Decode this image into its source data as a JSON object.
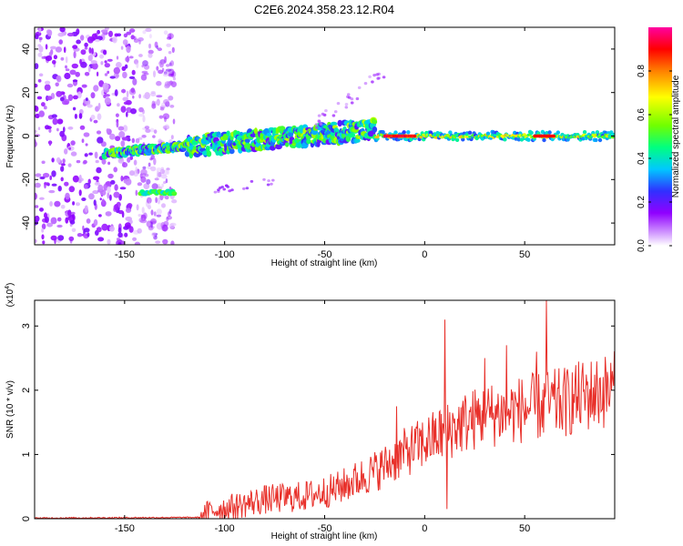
{
  "title": "C2E6.2024.358.23.12.R04",
  "chart_data": [
    {
      "type": "heatmap",
      "xlabel": "Height of straight line (km)",
      "ylabel": "Frequency (Hz)",
      "xlim": [
        -195,
        95
      ],
      "ylim": [
        -50,
        50
      ],
      "xticks": [
        -150,
        -100,
        -50,
        0,
        50
      ],
      "yticks": [
        -40,
        -20,
        0,
        20,
        40
      ],
      "colorbar": {
        "label": "Normalized spectral amplitude",
        "range": [
          0,
          1
        ],
        "ticks": [
          "0.0",
          "0.2",
          "0.4",
          "0.6",
          "0.8"
        ],
        "colors": [
          "#ffffff",
          "#d8a8ff",
          "#9000ff",
          "#3030ff",
          "#00c8ff",
          "#00ff80",
          "#70ff00",
          "#ffff00",
          "#ff8000",
          "#ff0000",
          "#ff00a0"
        ]
      },
      "features": [
        {
          "name": "noise cloud",
          "x": [
            -195,
            -125
          ],
          "y": [
            -50,
            50
          ],
          "amplitude": 0.15
        },
        {
          "name": "lower trace",
          "x": [
            -142,
            -125
          ],
          "y": -26,
          "amplitude": 0.35
        },
        {
          "name": "main trace",
          "x": [
            -160,
            -25
          ],
          "y_start": -8,
          "y_end": 3,
          "amplitude": 0.45
        },
        {
          "name": "zero line",
          "x": [
            -25,
            95
          ],
          "y": 0,
          "amplitude": 0.85
        }
      ]
    },
    {
      "type": "line",
      "xlabel": "Height of straight line (km)",
      "ylabel": "SNR (10 * v/v)",
      "scale_label": "(x10",
      "scale_exponent": "4",
      "scale_close": ")",
      "xlim": [
        -195,
        95
      ],
      "ylim": [
        0,
        3.4
      ],
      "xticks": [
        -150,
        -100,
        -50,
        0,
        50
      ],
      "yticks": [
        0,
        1,
        2,
        3
      ],
      "line_color": "#e8302a",
      "anchors": [
        [
          -195,
          0.01
        ],
        [
          -112,
          0.02
        ],
        [
          -105,
          0.1
        ],
        [
          -95,
          0.15
        ],
        [
          -80,
          0.25
        ],
        [
          -60,
          0.3
        ],
        [
          -45,
          0.4
        ],
        [
          -30,
          0.6
        ],
        [
          -20,
          0.75
        ],
        [
          -10,
          0.95
        ],
        [
          0,
          1.1
        ],
        [
          10,
          1.25
        ],
        [
          20,
          1.4
        ],
        [
          30,
          1.5
        ],
        [
          40,
          1.55
        ],
        [
          50,
          1.6
        ],
        [
          60,
          1.65
        ],
        [
          70,
          1.7
        ],
        [
          80,
          1.8
        ],
        [
          95,
          1.9
        ]
      ],
      "spikes": [
        [
          10,
          3.1
        ],
        [
          11,
          0.15
        ],
        [
          61,
          3.4
        ],
        [
          30,
          2.5
        ],
        [
          41,
          2.7
        ],
        [
          56,
          2.6
        ],
        [
          -14,
          1.75
        ]
      ]
    }
  ]
}
